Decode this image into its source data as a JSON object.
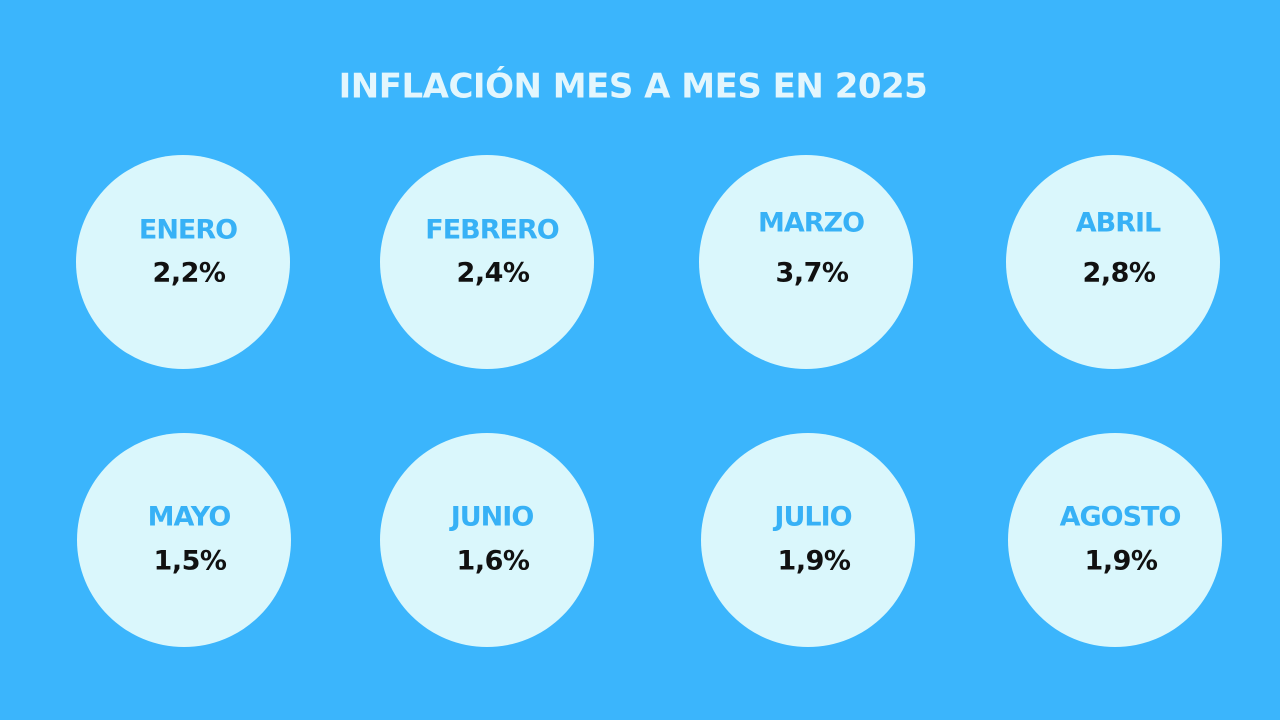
{
  "header": {
    "title": "INFLACIÓN MES A MES EN 2025"
  },
  "months": [
    {
      "name": "ENERO",
      "value": "2,2%"
    },
    {
      "name": "FEBRERO",
      "value": "2,4%"
    },
    {
      "name": "MARZO",
      "value": "3,7%"
    },
    {
      "name": "ABRIL",
      "value": "2,8%"
    },
    {
      "name": "MAYO",
      "value": "1,5%"
    },
    {
      "name": "JUNIO",
      "value": "1,6%"
    },
    {
      "name": "JULIO",
      "value": "1,9%"
    },
    {
      "name": "AGOSTO",
      "value": "1,9%"
    }
  ]
}
